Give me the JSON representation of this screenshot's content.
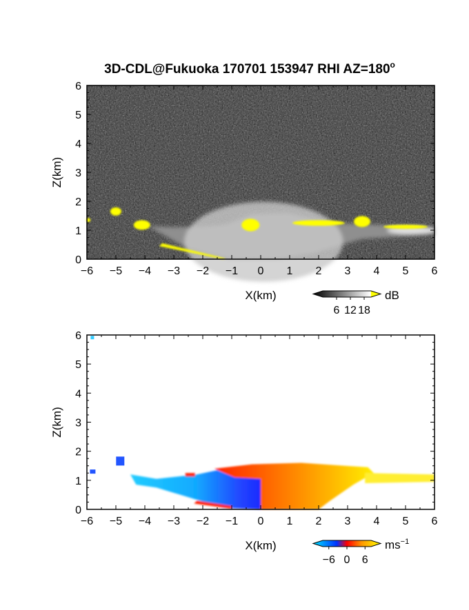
{
  "figure": {
    "title": "3D-CDL@Fukuoka 170701 153947 RHI AZ=180",
    "title_superscript": "o"
  },
  "chart_data": [
    {
      "type": "heatmap",
      "name": "snr-panel",
      "quantity": "signal-to-noise ratio",
      "xlabel": "X(km)",
      "ylabel": "Z(km)",
      "xlim": [
        -6,
        6
      ],
      "ylim": [
        0,
        6
      ],
      "x_ticks": [
        -6,
        -5,
        -4,
        -3,
        -2,
        -1,
        0,
        1,
        2,
        3,
        4,
        5,
        6
      ],
      "y_ticks": [
        0,
        1,
        2,
        3,
        4,
        5,
        6
      ],
      "grid": false,
      "background": "grayscale noise",
      "colorbar": {
        "unit": "dB",
        "ticks": [
          6,
          12,
          18
        ],
        "range": [
          0,
          21
        ],
        "colors": [
          "#000000",
          "#ffffff",
          "#ffff00"
        ]
      },
      "features": [
        {
          "kind": "yellow-echo",
          "x": -5.0,
          "z": 1.65
        },
        {
          "kind": "yellow-echo",
          "x": -4.1,
          "z": 1.15
        },
        {
          "kind": "yellow-echo",
          "x": -3.5,
          "z": 0.4
        },
        {
          "kind": "yellow-echo",
          "x": -0.4,
          "z": 1.15
        },
        {
          "kind": "yellow-echo",
          "x": 2.0,
          "z": 1.25
        },
        {
          "kind": "yellow-echo",
          "x": 3.5,
          "z": 1.25
        },
        {
          "kind": "yellow-echo",
          "x": 5.0,
          "z": 1.1
        }
      ]
    },
    {
      "type": "heatmap",
      "name": "velocity-panel",
      "quantity": "Doppler velocity",
      "xlabel": "X(km)",
      "ylabel": "Z(km)",
      "xlim": [
        -6,
        6
      ],
      "ylim": [
        0,
        6
      ],
      "x_ticks": [
        -6,
        -5,
        -4,
        -3,
        -2,
        -1,
        0,
        1,
        2,
        3,
        4,
        5,
        6
      ],
      "y_ticks": [
        0,
        1,
        2,
        3,
        4,
        5,
        6
      ],
      "grid": false,
      "colorbar": {
        "unit": "ms",
        "unit_superscript": "−1",
        "ticks": [
          -6,
          0,
          6
        ],
        "tick_labels": [
          "−6",
          "0",
          "6"
        ],
        "range": [
          -8,
          8
        ],
        "colors": [
          "#00e5ff",
          "#0033ff",
          "#ff0000",
          "#ff9900",
          "#ffff00"
        ]
      },
      "regions": [
        {
          "kind": "negative",
          "x_range": [
            -4.5,
            0
          ],
          "z_range": [
            0,
            1.4
          ]
        },
        {
          "kind": "positive",
          "x_range": [
            0,
            3.9
          ],
          "z_range": [
            0,
            1.6
          ]
        },
        {
          "kind": "positive-weak",
          "x_range": [
            3.9,
            6
          ],
          "z_range": [
            0.9,
            1.25
          ]
        }
      ],
      "isolated_echoes": [
        {
          "x": -5.8,
          "z": 5.9
        },
        {
          "x": -4.85,
          "z": 1.65
        },
        {
          "x": -5.8,
          "z": 1.3
        }
      ]
    }
  ]
}
